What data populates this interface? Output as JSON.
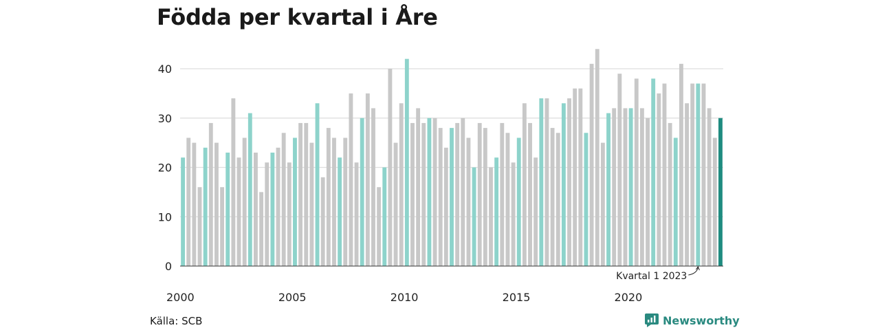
{
  "title": "Födda per kvartal i Åre",
  "source": "Källa: SCB",
  "brand": "Newsworthy",
  "colors": {
    "q1": "#8dd3cb",
    "other": "#c8c8c8",
    "latest": "#1f8c80",
    "grid": "#dddddd",
    "brand": "#2a8a80"
  },
  "chart_data": {
    "type": "bar",
    "title": "Födda per kvartal i Åre",
    "xlabel": "",
    "ylabel": "",
    "ylim": [
      0,
      45
    ],
    "yticks": [
      0,
      10,
      20,
      30,
      40
    ],
    "xticks": [
      "2000",
      "2005",
      "2010",
      "2015",
      "2020"
    ],
    "start_year": 2000,
    "grid": true,
    "values": [
      22,
      26,
      25,
      16,
      24,
      29,
      25,
      16,
      23,
      34,
      22,
      26,
      31,
      23,
      15,
      21,
      23,
      24,
      27,
      21,
      26,
      29,
      29,
      25,
      33,
      18,
      28,
      26,
      22,
      26,
      35,
      21,
      30,
      35,
      32,
      16,
      20,
      40,
      25,
      33,
      42,
      29,
      32,
      29,
      30,
      30,
      28,
      24,
      28,
      29,
      30,
      26,
      20,
      29,
      28,
      20,
      22,
      29,
      27,
      21,
      26,
      33,
      29,
      22,
      34,
      34,
      28,
      27,
      33,
      34,
      36,
      36,
      27,
      41,
      44,
      25,
      31,
      32,
      39,
      32,
      32,
      38,
      32,
      30,
      38,
      35,
      37,
      29,
      26,
      41,
      33,
      37,
      37,
      37,
      32,
      26,
      30
    ],
    "annotation": "Kvartal 1 2023"
  }
}
